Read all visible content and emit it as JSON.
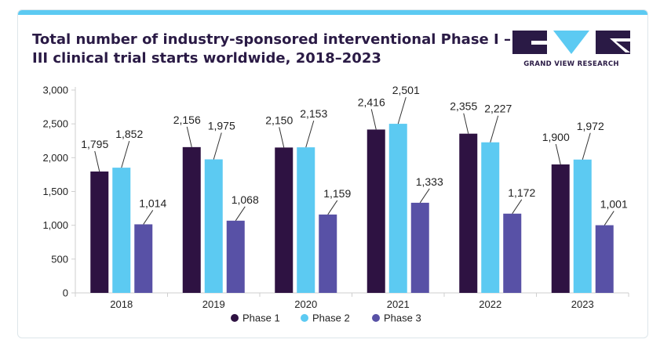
{
  "header": {
    "title": "Total number of industry-sponsored interventional Phase I – III clinical trial starts worldwide, 2018–2023",
    "brand": "GRAND VIEW RESEARCH"
  },
  "colors": {
    "phase1": "#2e1242",
    "phase2": "#5ccaf2",
    "phase3": "#5851a6",
    "accent": "#5ccaf2"
  },
  "chart_data": {
    "type": "bar",
    "categories": [
      "2018",
      "2019",
      "2020",
      "2021",
      "2022",
      "2023"
    ],
    "series": [
      {
        "name": "Phase 1",
        "values": [
          1795,
          2156,
          2150,
          2416,
          2355,
          1900
        ]
      },
      {
        "name": "Phase 2",
        "values": [
          1852,
          1975,
          2153,
          2501,
          2227,
          1972
        ]
      },
      {
        "name": "Phase 3",
        "values": [
          1014,
          1068,
          1159,
          1333,
          1172,
          1001
        ]
      }
    ],
    "labels": [
      [
        "1,795",
        "2,156",
        "2,150",
        "2,416",
        "2,355",
        "1,900"
      ],
      [
        "1,852",
        "1,975",
        "2,153",
        "2,501",
        "2,227",
        "1,972"
      ],
      [
        "1,014",
        "1,068",
        "1,159",
        "1,333",
        "1,172",
        "1,001"
      ]
    ],
    "ylim": [
      0,
      3000
    ],
    "yticks": [
      0,
      500,
      1000,
      1500,
      2000,
      2500,
      3000
    ],
    "ytick_labels": [
      "0",
      "500",
      "1,000",
      "1,500",
      "2,000",
      "2,500",
      "3,000"
    ],
    "legend": [
      "Phase 1",
      "Phase 2",
      "Phase 3"
    ],
    "legend_position": "bottom",
    "grid": false
  }
}
